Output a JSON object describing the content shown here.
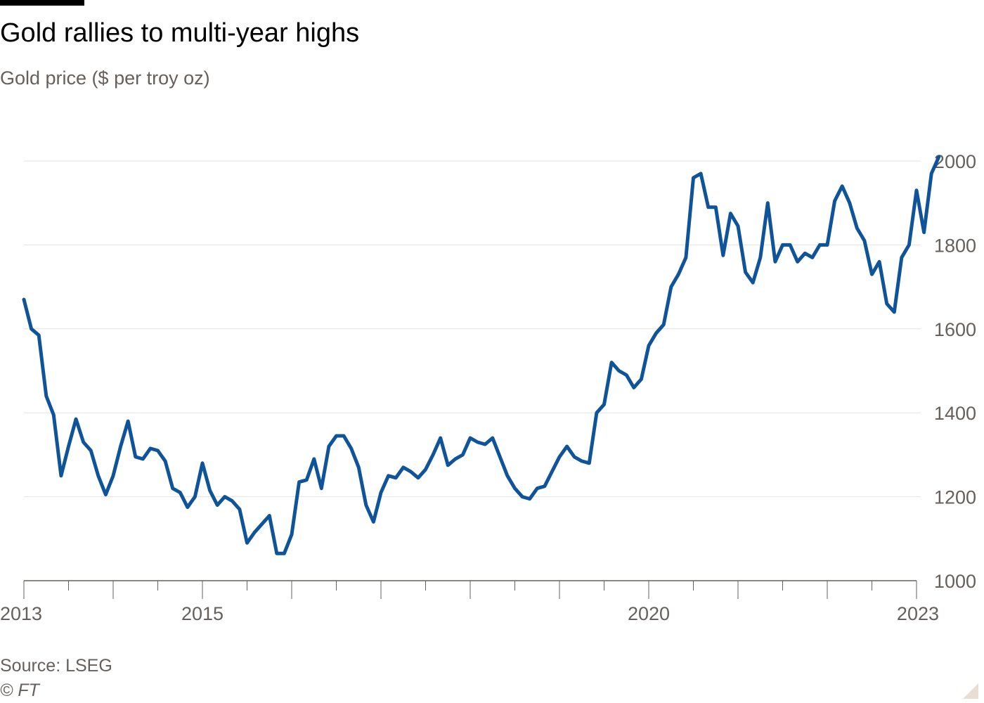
{
  "header": {
    "title": "Gold rallies to multi-year highs",
    "subtitle": "Gold price ($ per troy oz)"
  },
  "footer": {
    "source": "Source: LSEG",
    "copyright": "© FT"
  },
  "colors": {
    "line": "#0f5499",
    "grid": "#e6e2de",
    "axis": "#66605c",
    "text": "#000000",
    "muted": "#66605c"
  },
  "chart_data": {
    "type": "line",
    "title": "Gold rallies to multi-year highs",
    "subtitle": "Gold price ($ per troy oz)",
    "xlabel": "",
    "ylabel": "",
    "xlim": [
      "2013-01",
      "2023-04"
    ],
    "ylim": [
      1000,
      2000
    ],
    "y_ticks": [
      1000,
      1200,
      1400,
      1600,
      1800,
      2000
    ],
    "x_tick_labels": [
      "2013",
      "2015",
      "2020",
      "2023"
    ],
    "grid": true,
    "legend": "none",
    "series": [
      {
        "x": [
          "2013-01",
          "2013-02",
          "2013-03",
          "2013-04",
          "2013-05",
          "2013-06",
          "2013-07",
          "2013-08",
          "2013-09",
          "2013-10",
          "2013-11",
          "2013-12",
          "2014-01",
          "2014-02",
          "2014-03",
          "2014-04",
          "2014-05",
          "2014-06",
          "2014-07",
          "2014-08",
          "2014-09",
          "2014-10",
          "2014-11",
          "2014-12",
          "2015-01",
          "2015-02",
          "2015-03",
          "2015-04",
          "2015-05",
          "2015-06",
          "2015-07",
          "2015-08",
          "2015-09",
          "2015-10",
          "2015-11",
          "2015-12",
          "2016-01",
          "2016-02",
          "2016-03",
          "2016-04",
          "2016-05",
          "2016-06",
          "2016-07",
          "2016-08",
          "2016-09",
          "2016-10",
          "2016-11",
          "2016-12",
          "2017-01",
          "2017-02",
          "2017-03",
          "2017-04",
          "2017-05",
          "2017-06",
          "2017-07",
          "2017-08",
          "2017-09",
          "2017-10",
          "2017-11",
          "2017-12",
          "2018-01",
          "2018-02",
          "2018-03",
          "2018-04",
          "2018-05",
          "2018-06",
          "2018-07",
          "2018-08",
          "2018-09",
          "2018-10",
          "2018-11",
          "2018-12",
          "2019-01",
          "2019-02",
          "2019-03",
          "2019-04",
          "2019-05",
          "2019-06",
          "2019-07",
          "2019-08",
          "2019-09",
          "2019-10",
          "2019-11",
          "2019-12",
          "2020-01",
          "2020-02",
          "2020-03",
          "2020-04",
          "2020-05",
          "2020-06",
          "2020-07",
          "2020-08",
          "2020-09",
          "2020-10",
          "2020-11",
          "2020-12",
          "2021-01",
          "2021-02",
          "2021-03",
          "2021-04",
          "2021-05",
          "2021-06",
          "2021-07",
          "2021-08",
          "2021-09",
          "2021-10",
          "2021-11",
          "2021-12",
          "2022-01",
          "2022-02",
          "2022-03",
          "2022-04",
          "2022-05",
          "2022-06",
          "2022-07",
          "2022-08",
          "2022-09",
          "2022-10",
          "2022-11",
          "2022-12",
          "2023-01",
          "2023-02",
          "2023-03",
          "2023-04"
        ],
        "y": [
          1670,
          1600,
          1585,
          1440,
          1395,
          1250,
          1320,
          1385,
          1330,
          1310,
          1250,
          1205,
          1250,
          1320,
          1380,
          1295,
          1290,
          1315,
          1310,
          1285,
          1220,
          1210,
          1175,
          1200,
          1280,
          1215,
          1180,
          1200,
          1190,
          1170,
          1090,
          1115,
          1135,
          1155,
          1065,
          1065,
          1110,
          1235,
          1240,
          1290,
          1220,
          1320,
          1345,
          1345,
          1315,
          1270,
          1180,
          1140,
          1210,
          1250,
          1245,
          1270,
          1260,
          1245,
          1265,
          1300,
          1340,
          1275,
          1290,
          1300,
          1340,
          1330,
          1325,
          1340,
          1295,
          1250,
          1220,
          1200,
          1195,
          1220,
          1225,
          1260,
          1295,
          1320,
          1295,
          1285,
          1280,
          1400,
          1420,
          1520,
          1500,
          1490,
          1460,
          1480,
          1560,
          1590,
          1610,
          1700,
          1730,
          1770,
          1960,
          1970,
          1890,
          1890,
          1775,
          1875,
          1845,
          1735,
          1710,
          1770,
          1900,
          1760,
          1800,
          1800,
          1760,
          1780,
          1770,
          1800,
          1800,
          1905,
          1940,
          1900,
          1840,
          1810,
          1730,
          1760,
          1660,
          1640,
          1770,
          1800,
          1930,
          1830,
          1970,
          2010
        ]
      }
    ]
  }
}
